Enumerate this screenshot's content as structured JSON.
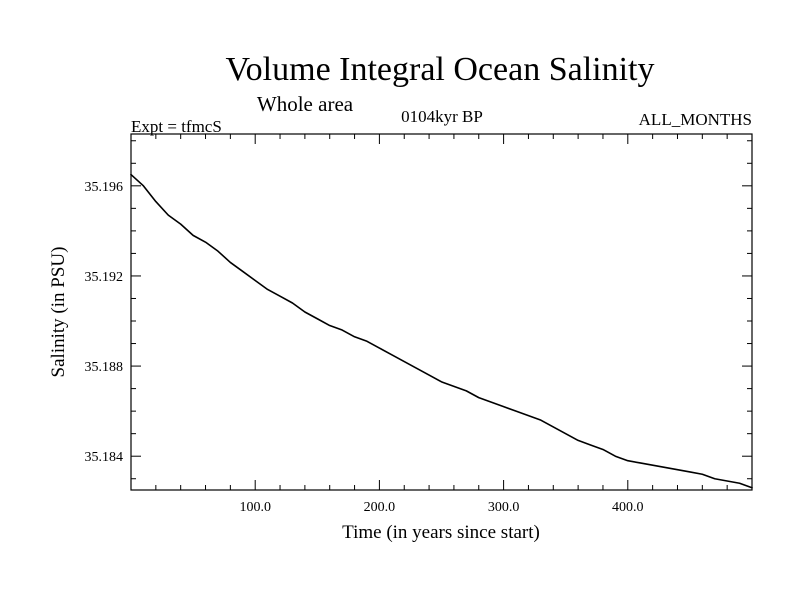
{
  "chart_data": {
    "type": "line",
    "title": "Volume Integral Ocean Salinity",
    "subtitle": "Whole area",
    "header_left": "Expt = tfmcS",
    "header_center": "0104kyr BP",
    "header_right": "ALL_MONTHS",
    "xlabel": "Time (in years since start)",
    "ylabel": "Salinity (in PSU)",
    "xlim": [
      0,
      500
    ],
    "ylim": [
      35.1825,
      35.1983
    ],
    "x_ticks_major": [
      100,
      200,
      300,
      400
    ],
    "x_tick_labels": [
      "100.0",
      "200.0",
      "300.0",
      "400.0"
    ],
    "y_ticks_major": [
      35.184,
      35.188,
      35.192,
      35.196
    ],
    "y_tick_labels": [
      "35.184",
      "35.188",
      "35.192",
      "35.196"
    ],
    "grid": false,
    "legend": "none",
    "line_color": "#000000",
    "series": [
      {
        "x": [
          0,
          10,
          20,
          30,
          40,
          50,
          60,
          70,
          80,
          90,
          100,
          110,
          120,
          130,
          140,
          150,
          160,
          170,
          180,
          190,
          200,
          210,
          220,
          230,
          240,
          250,
          260,
          270,
          280,
          290,
          300,
          310,
          320,
          330,
          340,
          350,
          360,
          370,
          380,
          390,
          400,
          410,
          420,
          430,
          440,
          450,
          460,
          470,
          480,
          490,
          500
        ],
        "values": [
          35.1965,
          35.196,
          35.1953,
          35.1947,
          35.1943,
          35.1938,
          35.1935,
          35.1931,
          35.1926,
          35.1922,
          35.1918,
          35.1914,
          35.1911,
          35.1908,
          35.1904,
          35.1901,
          35.1898,
          35.1896,
          35.1893,
          35.1891,
          35.1888,
          35.1885,
          35.1882,
          35.1879,
          35.1876,
          35.1873,
          35.1871,
          35.1869,
          35.1866,
          35.1864,
          35.1862,
          35.186,
          35.1858,
          35.1856,
          35.1853,
          35.185,
          35.1847,
          35.1845,
          35.1843,
          35.184,
          35.1838,
          35.1837,
          35.1836,
          35.1835,
          35.1834,
          35.1833,
          35.1832,
          35.183,
          35.1829,
          35.1828,
          35.1826
        ]
      }
    ]
  }
}
